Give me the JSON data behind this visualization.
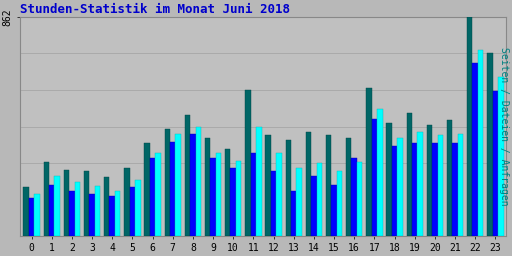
{
  "title": "Stunden-Statistik im Monat Juni 2018",
  "title_color": "#0000cc",
  "ylabel": "Seiten / Dateien / Anfragen",
  "ylabel_color": "#008080",
  "background_color": "#b8b8b8",
  "plot_bg_color": "#c0c0c0",
  "hours": [
    0,
    1,
    2,
    3,
    4,
    5,
    6,
    7,
    8,
    9,
    10,
    11,
    12,
    13,
    14,
    15,
    16,
    17,
    18,
    19,
    20,
    21,
    22,
    23
  ],
  "ytick_label": "862",
  "ylim": [
    0,
    862
  ],
  "green_values": [
    190,
    290,
    260,
    255,
    230,
    265,
    365,
    420,
    475,
    385,
    340,
    575,
    395,
    375,
    410,
    395,
    385,
    580,
    445,
    485,
    435,
    455,
    862,
    720
  ],
  "blue_values": [
    150,
    200,
    175,
    165,
    155,
    190,
    305,
    370,
    400,
    305,
    265,
    325,
    255,
    175,
    235,
    200,
    305,
    460,
    355,
    365,
    365,
    365,
    680,
    570
  ],
  "cyan_values": [
    165,
    235,
    210,
    195,
    175,
    220,
    325,
    400,
    430,
    325,
    295,
    430,
    325,
    265,
    285,
    255,
    290,
    500,
    385,
    410,
    395,
    400,
    730,
    625
  ],
  "green_color": "#006666",
  "blue_color": "#0000ff",
  "cyan_color": "#00ffff",
  "grid_color": "#aaaaaa",
  "bar_width": 0.27
}
